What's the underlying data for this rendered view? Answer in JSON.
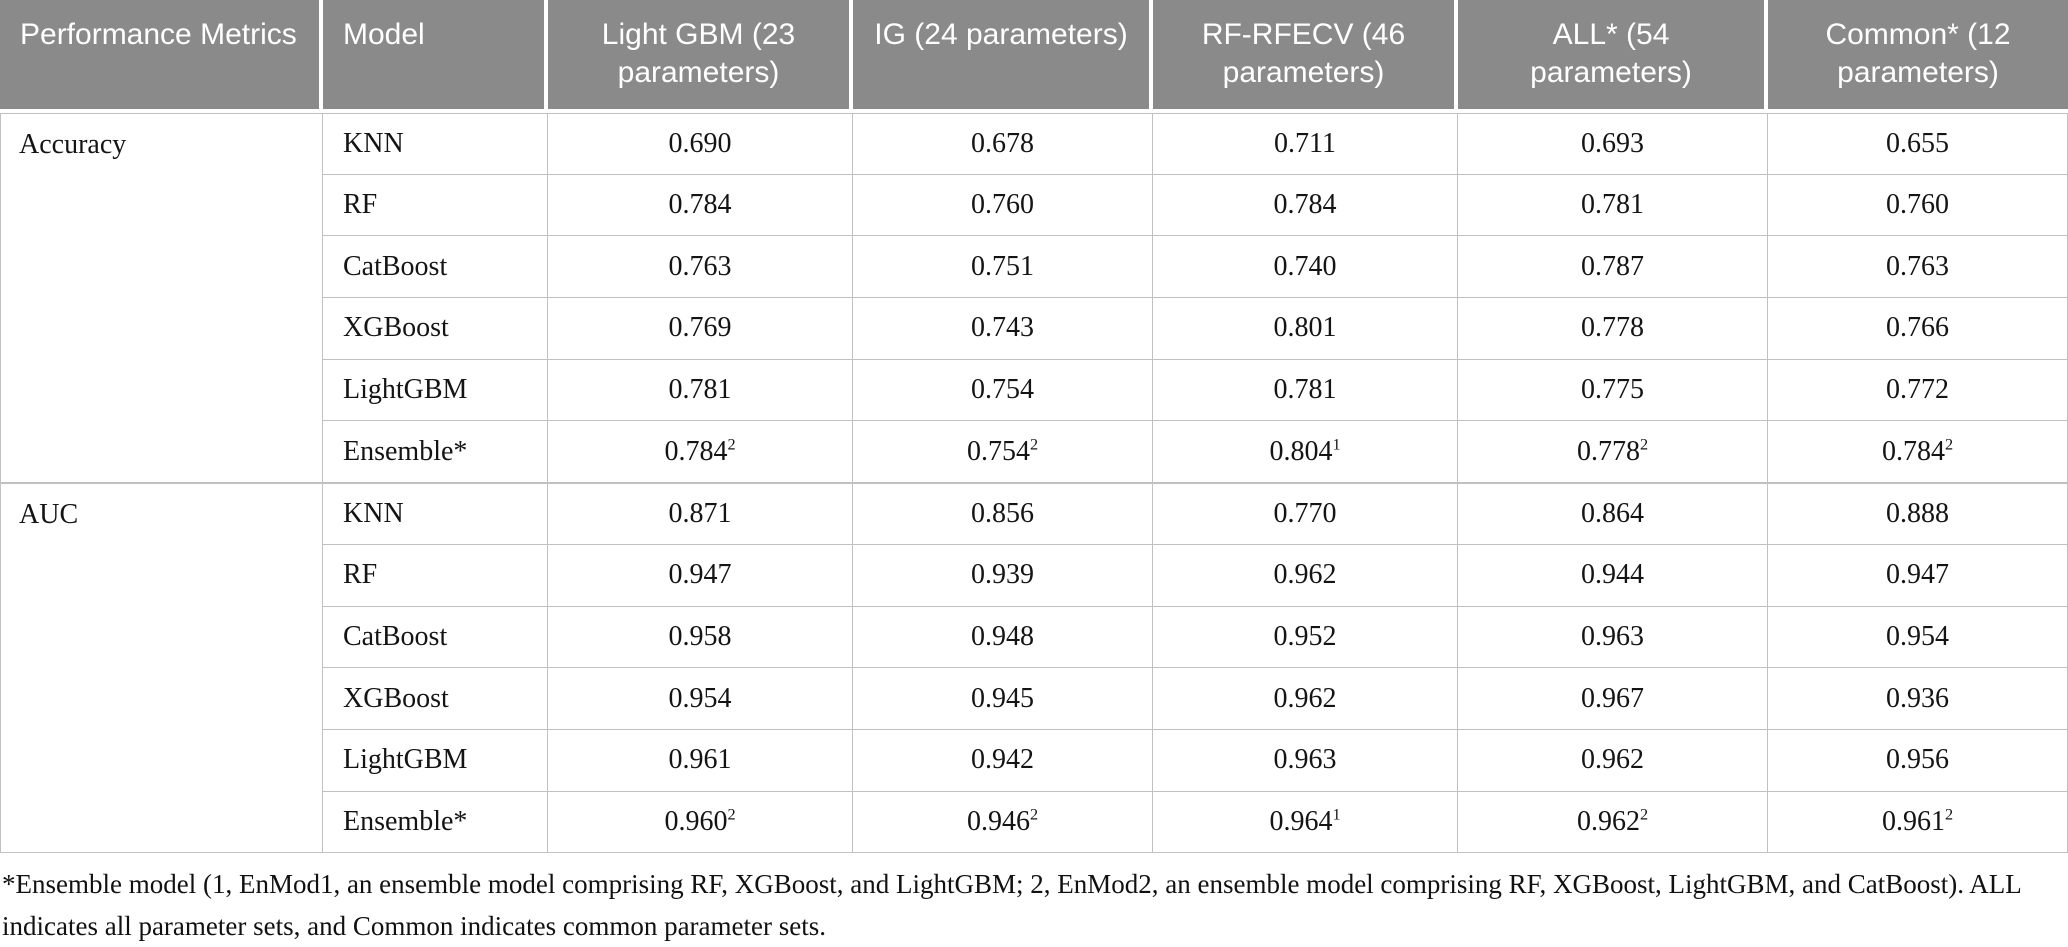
{
  "colors": {
    "header_bg": "#8a8a8a",
    "header_text": "#ffffff",
    "body_text": "#141414",
    "border": "#c0c0c0"
  },
  "header": {
    "columns": [
      "Performance Metrics",
      "Model",
      "Light GBM (23 parameters)",
      "IG (24 parameters)",
      "RF-RFECV (46 parameters)",
      "ALL* (54 parameters)",
      "Common* (12 parameters)"
    ]
  },
  "sections": [
    {
      "metric": "Accuracy",
      "rows": [
        {
          "model": "KNN",
          "cells": [
            {
              "v": "0.690"
            },
            {
              "v": "0.678"
            },
            {
              "v": "0.711"
            },
            {
              "v": "0.693"
            },
            {
              "v": "0.655"
            }
          ]
        },
        {
          "model": "RF",
          "cells": [
            {
              "v": "0.784"
            },
            {
              "v": "0.760"
            },
            {
              "v": "0.784"
            },
            {
              "v": "0.781"
            },
            {
              "v": "0.760"
            }
          ]
        },
        {
          "model": "CatBoost",
          "cells": [
            {
              "v": "0.763"
            },
            {
              "v": "0.751"
            },
            {
              "v": "0.740"
            },
            {
              "v": "0.787"
            },
            {
              "v": "0.763"
            }
          ]
        },
        {
          "model": "XGBoost",
          "cells": [
            {
              "v": "0.769"
            },
            {
              "v": "0.743"
            },
            {
              "v": "0.801"
            },
            {
              "v": "0.778"
            },
            {
              "v": "0.766"
            }
          ]
        },
        {
          "model": "LightGBM",
          "cells": [
            {
              "v": "0.781"
            },
            {
              "v": "0.754"
            },
            {
              "v": "0.781"
            },
            {
              "v": "0.775"
            },
            {
              "v": "0.772"
            }
          ]
        },
        {
          "model": "Ensemble*",
          "cells": [
            {
              "v": "0.784",
              "sup": "2"
            },
            {
              "v": "0.754",
              "sup": "2"
            },
            {
              "v": "0.804",
              "sup": "1"
            },
            {
              "v": "0.778",
              "sup": "2"
            },
            {
              "v": "0.784",
              "sup": "2"
            }
          ]
        }
      ]
    },
    {
      "metric": "AUC",
      "rows": [
        {
          "model": "KNN",
          "cells": [
            {
              "v": "0.871"
            },
            {
              "v": "0.856"
            },
            {
              "v": "0.770"
            },
            {
              "v": "0.864"
            },
            {
              "v": "0.888"
            }
          ]
        },
        {
          "model": "RF",
          "cells": [
            {
              "v": "0.947"
            },
            {
              "v": "0.939"
            },
            {
              "v": "0.962"
            },
            {
              "v": "0.944"
            },
            {
              "v": "0.947"
            }
          ]
        },
        {
          "model": "CatBoost",
          "cells": [
            {
              "v": "0.958"
            },
            {
              "v": "0.948"
            },
            {
              "v": "0.952"
            },
            {
              "v": "0.963"
            },
            {
              "v": "0.954"
            }
          ]
        },
        {
          "model": "XGBoost",
          "cells": [
            {
              "v": "0.954"
            },
            {
              "v": "0.945"
            },
            {
              "v": "0.962"
            },
            {
              "v": "0.967"
            },
            {
              "v": "0.936"
            }
          ]
        },
        {
          "model": "LightGBM",
          "cells": [
            {
              "v": "0.961"
            },
            {
              "v": "0.942"
            },
            {
              "v": "0.963"
            },
            {
              "v": "0.962"
            },
            {
              "v": "0.956"
            }
          ]
        },
        {
          "model": "Ensemble*",
          "cells": [
            {
              "v": "0.960",
              "sup": "2"
            },
            {
              "v": "0.946",
              "sup": "2"
            },
            {
              "v": "0.964",
              "sup": "1"
            },
            {
              "v": "0.962",
              "sup": "2"
            },
            {
              "v": "0.961",
              "sup": "2"
            }
          ]
        }
      ]
    }
  ],
  "footnote": "*Ensemble model (1, EnMod1, an ensemble model comprising RF, XGBoost, and LightGBM; 2, EnMod2, an ensemble model comprising RF, XGBoost, LightGBM, and CatBoost). ALL indicates all parameter sets, and Common indicates common parameter sets."
}
